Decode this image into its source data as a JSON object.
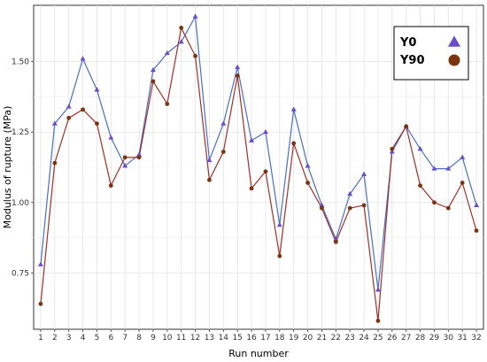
{
  "chart_data": {
    "type": "line",
    "title": "",
    "xlabel": "Run number",
    "ylabel": "Modulus of rupture (MPa)",
    "x": [
      1,
      2,
      3,
      4,
      5,
      6,
      7,
      8,
      9,
      10,
      11,
      12,
      13,
      14,
      15,
      16,
      17,
      18,
      19,
      20,
      21,
      22,
      23,
      24,
      25,
      26,
      27,
      28,
      29,
      30,
      31,
      32
    ],
    "xlim": [
      0.5,
      32.5
    ],
    "ylim": [
      0.55,
      1.7
    ],
    "yticks": [
      0.75,
      1.0,
      1.25,
      1.5
    ],
    "ytick_labels": [
      "0.75",
      "1.00",
      "1.25",
      "1.50"
    ],
    "grid": true,
    "legend_position": "top-right",
    "series": [
      {
        "name": "Y0",
        "marker": "triangle",
        "line_color": "#4a6fc7",
        "marker_color": "#6a4fc9",
        "values": [
          0.78,
          1.28,
          1.34,
          1.51,
          1.4,
          1.23,
          1.13,
          1.17,
          1.47,
          1.53,
          1.57,
          1.66,
          1.15,
          1.28,
          1.48,
          1.22,
          1.25,
          0.92,
          1.33,
          1.13,
          0.99,
          0.87,
          1.03,
          1.1,
          0.69,
          1.18,
          1.27,
          1.19,
          1.12,
          1.12,
          1.16,
          0.99
        ]
      },
      {
        "name": "Y90",
        "marker": "circle",
        "line_color": "#a0302a",
        "marker_color": "#7a3410",
        "values": [
          0.64,
          1.14,
          1.3,
          1.33,
          1.28,
          1.06,
          1.16,
          1.16,
          1.43,
          1.35,
          1.62,
          1.52,
          1.08,
          1.18,
          1.45,
          1.05,
          1.11,
          0.81,
          1.21,
          1.07,
          0.98,
          0.86,
          0.98,
          0.99,
          0.58,
          1.19,
          1.27,
          1.06,
          1.0,
          0.98,
          1.07,
          0.9
        ]
      }
    ]
  }
}
